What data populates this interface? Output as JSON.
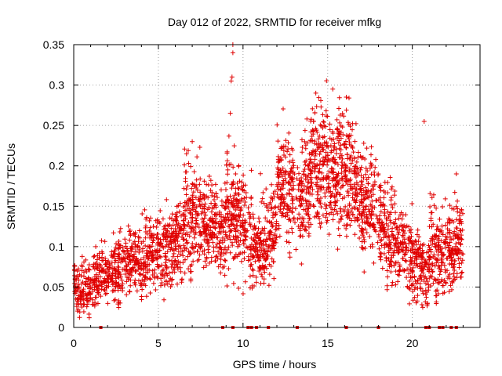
{
  "chart_data": {
    "type": "scatter",
    "title": "Day 012 of 2022, SRMTID for receiver mfkg",
    "xlabel": "GPS time / hours",
    "ylabel": "SRMTID / TECUs",
    "xlim": [
      0,
      24
    ],
    "ylim": [
      0,
      0.35
    ],
    "x_ticks": [
      "0",
      "5",
      "10",
      "15",
      "20"
    ],
    "y_ticks": [
      "0",
      "0.05",
      "0.1",
      "0.15",
      "0.2",
      "0.25",
      "0.3",
      "0.35"
    ],
    "grid": true,
    "marker": "+",
    "color": "#e00000",
    "trend": {
      "description": "approximate binned trend of the scatter (center value and spread per 0.5 h)",
      "x": [
        0.25,
        0.75,
        1.25,
        1.75,
        2.25,
        2.75,
        3.25,
        3.75,
        4.25,
        4.75,
        5.25,
        5.75,
        6.25,
        6.75,
        7.25,
        7.75,
        8.25,
        8.75,
        9.25,
        9.75,
        10.25,
        10.75,
        11.25,
        11.75,
        12.25,
        12.75,
        13.25,
        13.75,
        14.25,
        14.75,
        15.25,
        15.75,
        16.25,
        16.75,
        17.25,
        17.75,
        18.25,
        18.75,
        19.25,
        19.75,
        20.25,
        20.75,
        21.25,
        21.75,
        22.25,
        22.75
      ],
      "center": [
        0.045,
        0.05,
        0.06,
        0.065,
        0.07,
        0.075,
        0.08,
        0.085,
        0.085,
        0.09,
        0.095,
        0.1,
        0.11,
        0.13,
        0.14,
        0.13,
        0.13,
        0.12,
        0.15,
        0.14,
        0.12,
        0.1,
        0.11,
        0.12,
        0.17,
        0.17,
        0.16,
        0.18,
        0.2,
        0.2,
        0.19,
        0.2,
        0.19,
        0.17,
        0.15,
        0.15,
        0.13,
        0.11,
        0.1,
        0.09,
        0.08,
        0.07,
        0.09,
        0.09,
        0.1,
        0.11
      ],
      "spread": [
        0.03,
        0.03,
        0.03,
        0.03,
        0.035,
        0.035,
        0.035,
        0.035,
        0.04,
        0.04,
        0.04,
        0.04,
        0.05,
        0.06,
        0.06,
        0.05,
        0.05,
        0.05,
        0.07,
        0.06,
        0.06,
        0.04,
        0.05,
        0.05,
        0.06,
        0.06,
        0.06,
        0.06,
        0.07,
        0.07,
        0.06,
        0.07,
        0.07,
        0.06,
        0.06,
        0.06,
        0.05,
        0.05,
        0.04,
        0.04,
        0.04,
        0.04,
        0.05,
        0.05,
        0.05,
        0.05
      ]
    },
    "outliers": [
      {
        "x": 9.4,
        "y": 0.35
      },
      {
        "x": 9.4,
        "y": 0.34
      },
      {
        "x": 9.35,
        "y": 0.31
      },
      {
        "x": 9.3,
        "y": 0.305
      },
      {
        "x": 9.25,
        "y": 0.265
      },
      {
        "x": 20.7,
        "y": 0.255
      },
      {
        "x": 14.3,
        "y": 0.29
      },
      {
        "x": 15.3,
        "y": 0.295
      },
      {
        "x": 16.1,
        "y": 0.285
      },
      {
        "x": 7.0,
        "y": 0.23
      },
      {
        "x": 22.6,
        "y": 0.19
      }
    ],
    "zero_markers_x": [
      1.6,
      8.8,
      9.4,
      10.3,
      10.5,
      10.8,
      11.5,
      13.2,
      16.1,
      18.0,
      20.8,
      21.0,
      21.6,
      21.8,
      22.3,
      22.6
    ]
  }
}
